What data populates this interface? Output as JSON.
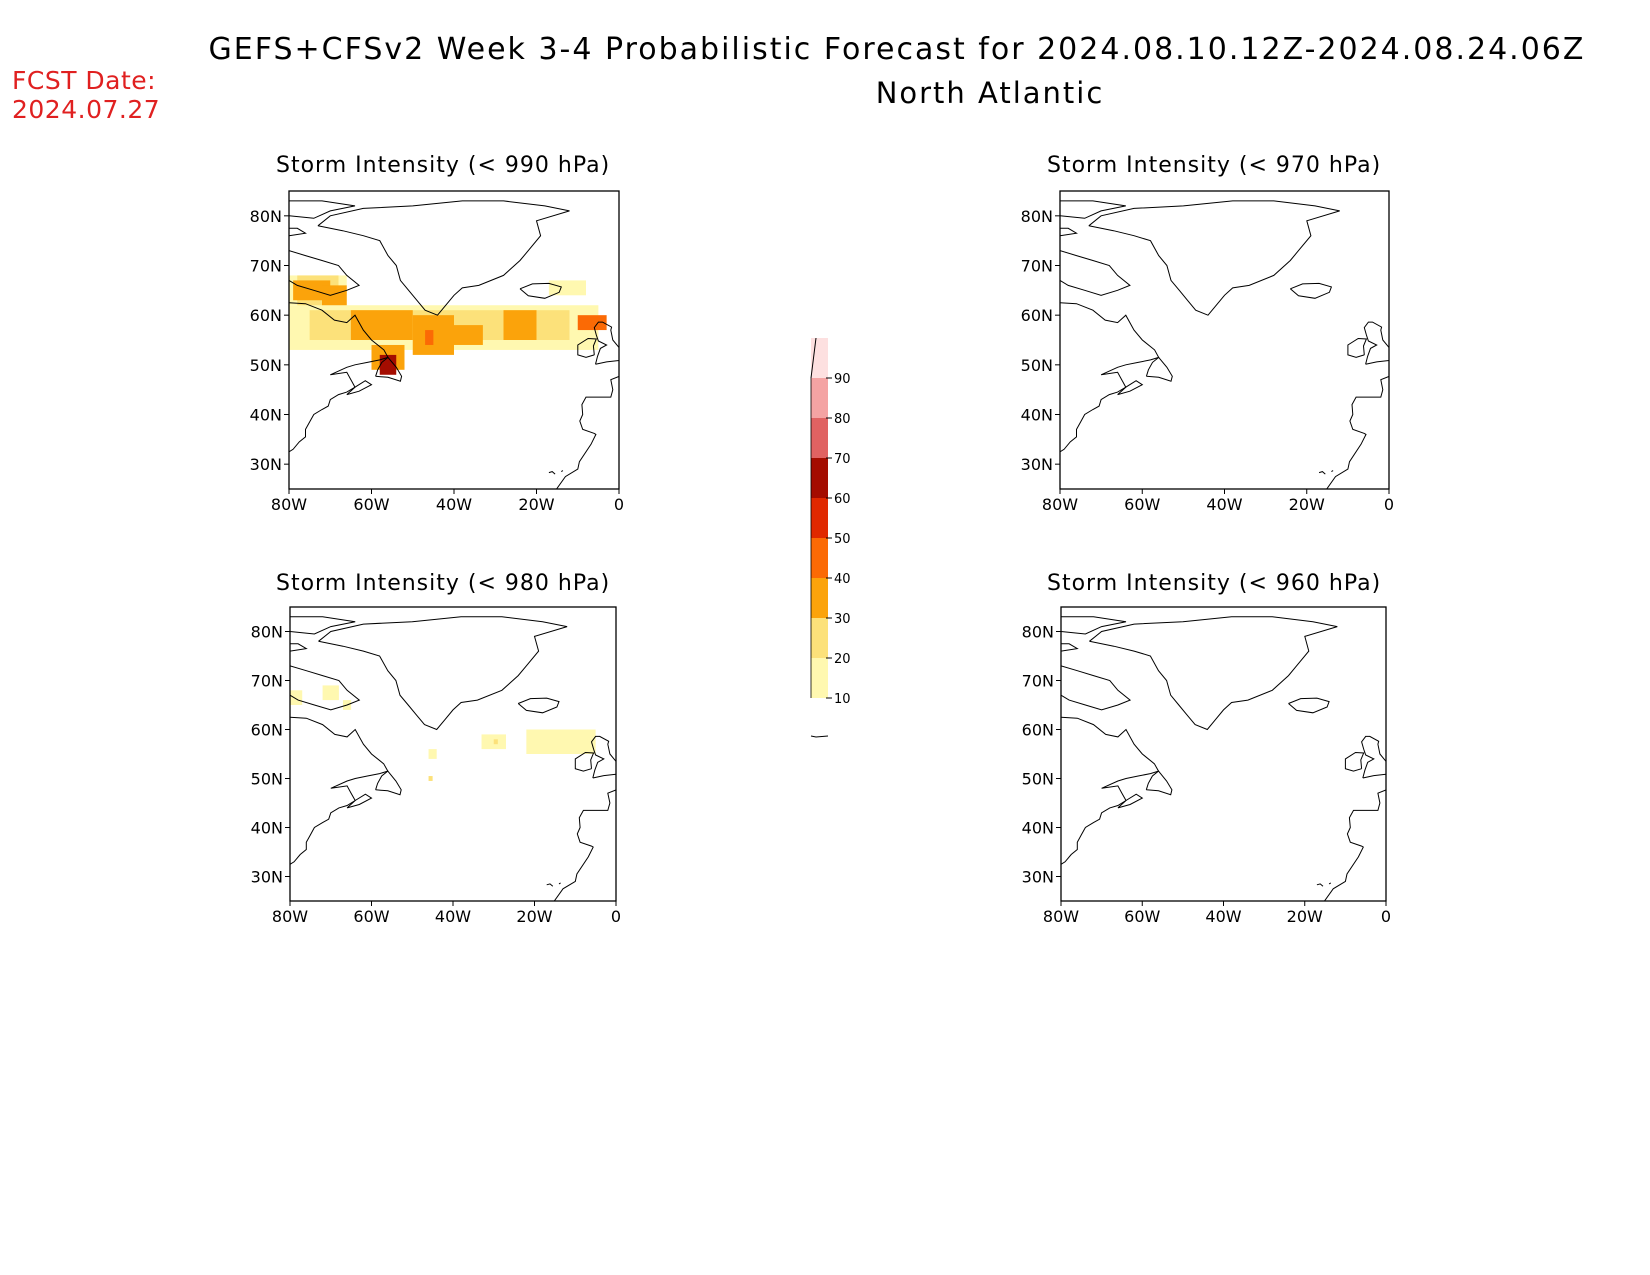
{
  "header": {
    "title": "GEFS+CFSv2 Week 3-4 Probabilistic Forecast for 2024.08.10.12Z-2024.08.24.06Z",
    "region": "North Atlantic",
    "fcst_label": "FCST Date:",
    "fcst_date": "2024.07.27"
  },
  "axes": {
    "x_labels": [
      "80W",
      "60W",
      "40W",
      "20W",
      "0"
    ],
    "y_labels": [
      "80N",
      "70N",
      "60N",
      "50N",
      "40N",
      "30N"
    ]
  },
  "panels": [
    {
      "title": "Storm Intensity (< 990 hPa)"
    },
    {
      "title": "Storm Intensity (< 970 hPa)"
    },
    {
      "title": "Storm Intensity (< 980 hPa)"
    },
    {
      "title": "Storm Intensity (< 960 hPa)"
    }
  ],
  "colorbar": {
    "levels": [
      "10",
      "20",
      "30",
      "40",
      "50",
      "60",
      "70",
      "80",
      "90"
    ],
    "colors": [
      "#fff8b0",
      "#fce17a",
      "#fba30b",
      "#fb6a05",
      "#e02800",
      "#a40c00",
      "#e06262",
      "#f4a3a3",
      "#fde0e0"
    ]
  },
  "chart_data": [
    {
      "type": "heatmap",
      "title": "Storm Intensity (< 990 hPa)",
      "units": "%",
      "xlim": [
        -80,
        0
      ],
      "ylim": [
        25,
        85
      ],
      "regions": [
        {
          "lon": [
            -80,
            -66
          ],
          "lat": [
            62,
            68
          ],
          "level": 10
        },
        {
          "lon": [
            -78,
            -68
          ],
          "lat": [
            60,
            68
          ],
          "level": 20
        },
        {
          "lon": [
            -79,
            -70
          ],
          "lat": [
            63,
            67
          ],
          "level": 30
        },
        {
          "lon": [
            -72,
            -66
          ],
          "lat": [
            60,
            66
          ],
          "level": 30
        },
        {
          "lon": [
            -80,
            -5
          ],
          "lat": [
            53,
            62
          ],
          "level": 10
        },
        {
          "lon": [
            -75,
            -12
          ],
          "lat": [
            55,
            61
          ],
          "level": 20
        },
        {
          "lon": [
            -65,
            -50
          ],
          "lat": [
            55,
            61
          ],
          "level": 30
        },
        {
          "lon": [
            -50,
            -40
          ],
          "lat": [
            52,
            60
          ],
          "level": 30
        },
        {
          "lon": [
            -40,
            -33
          ],
          "lat": [
            54,
            58
          ],
          "level": 30
        },
        {
          "lon": [
            -28,
            -20
          ],
          "lat": [
            55,
            61
          ],
          "level": 30
        },
        {
          "lon": [
            -60,
            -52
          ],
          "lat": [
            49,
            54
          ],
          "level": 30
        },
        {
          "lon": [
            -10,
            -3
          ],
          "lat": [
            57,
            60
          ],
          "level": 40
        },
        {
          "lon": [
            -58,
            -54
          ],
          "lat": [
            48,
            52
          ],
          "level": 60
        },
        {
          "lon": [
            -47,
            -45
          ],
          "lat": [
            54,
            57
          ],
          "level": 40
        },
        {
          "lon": [
            -17,
            -8
          ],
          "lat": [
            64,
            67
          ],
          "level": 10
        }
      ]
    },
    {
      "type": "heatmap",
      "title": "Storm Intensity (< 970 hPa)",
      "units": "%",
      "xlim": [
        -80,
        0
      ],
      "ylim": [
        25,
        85
      ],
      "regions": []
    },
    {
      "type": "heatmap",
      "title": "Storm Intensity (< 980 hPa)",
      "units": "%",
      "xlim": [
        -80,
        0
      ],
      "ylim": [
        25,
        85
      ],
      "regions": [
        {
          "lon": [
            -80,
            -77
          ],
          "lat": [
            65,
            68
          ],
          "level": 10
        },
        {
          "lon": [
            -72,
            -68
          ],
          "lat": [
            66,
            69
          ],
          "level": 10
        },
        {
          "lon": [
            -67,
            -65
          ],
          "lat": [
            64,
            66
          ],
          "level": 10
        },
        {
          "lon": [
            -33,
            -27
          ],
          "lat": [
            56,
            59
          ],
          "level": 10
        },
        {
          "lon": [
            -30,
            -29
          ],
          "lat": [
            57,
            58
          ],
          "level": 20
        },
        {
          "lon": [
            -22,
            -5
          ],
          "lat": [
            55,
            60
          ],
          "level": 10
        },
        {
          "lon": [
            -46,
            -44
          ],
          "lat": [
            54,
            56
          ],
          "level": 10
        },
        {
          "lon": [
            -46,
            -45
          ],
          "lat": [
            49.5,
            50.5
          ],
          "level": 20
        }
      ]
    },
    {
      "type": "heatmap",
      "title": "Storm Intensity (< 960 hPa)",
      "units": "%",
      "xlim": [
        -80,
        0
      ],
      "ylim": [
        25,
        85
      ],
      "regions": []
    }
  ]
}
